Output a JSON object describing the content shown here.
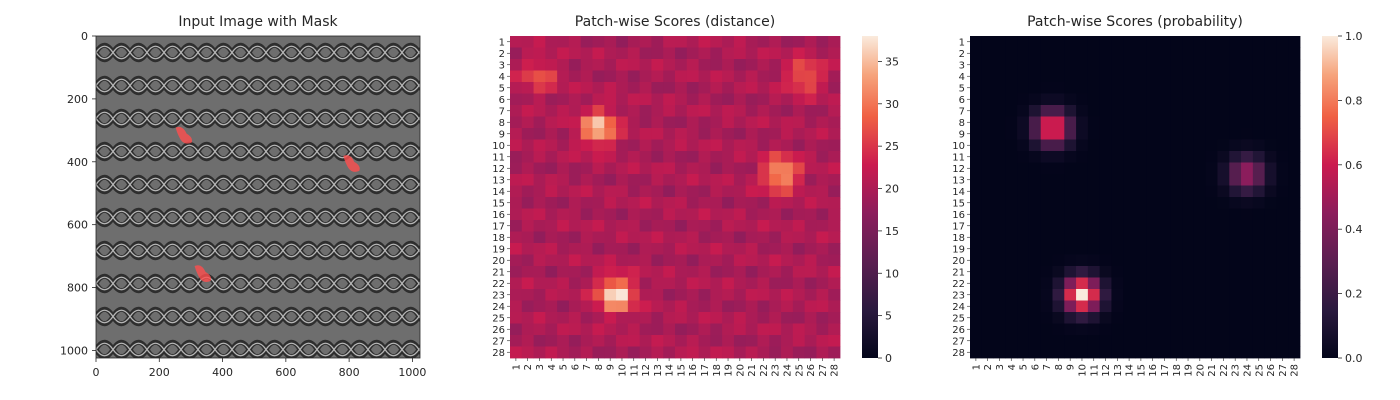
{
  "chart_data": [
    {
      "type": "image",
      "title": "Input Image with Mask",
      "xticks": [
        0,
        200,
        400,
        600,
        800,
        1000
      ],
      "yticks": [
        0,
        200,
        400,
        600,
        800,
        1000
      ],
      "xlim": [
        0,
        1024
      ],
      "ylim": [
        1024,
        0
      ],
      "mask_regions": [
        {
          "x": 280,
          "y": 320
        },
        {
          "x": 810,
          "y": 410
        },
        {
          "x": 340,
          "y": 760
        }
      ],
      "mask_color": "#ff4d4d"
    },
    {
      "type": "heatmap",
      "title": "Patch-wise Scores (distance)",
      "rows": 28,
      "cols": 28,
      "row_labels": [
        "1",
        "2",
        "3",
        "4",
        "5",
        "6",
        "7",
        "8",
        "9",
        "10",
        "11",
        "12",
        "13",
        "14",
        "15",
        "16",
        "17",
        "18",
        "19",
        "20",
        "21",
        "22",
        "23",
        "24",
        "25",
        "26",
        "27",
        "28"
      ],
      "col_labels": [
        "1",
        "2",
        "3",
        "4",
        "5",
        "6",
        "7",
        "8",
        "9",
        "10",
        "11",
        "12",
        "13",
        "14",
        "15",
        "16",
        "17",
        "18",
        "19",
        "20",
        "21",
        "22",
        "23",
        "24",
        "25",
        "26",
        "27",
        "28"
      ],
      "base_value": 20,
      "hotspots": [
        {
          "row": 8.5,
          "col": 8,
          "peak": 36
        },
        {
          "row": 12.5,
          "col": 23.5,
          "peak": 34
        },
        {
          "row": 23,
          "col": 9.5,
          "peak": 38
        },
        {
          "row": 4,
          "col": 25.5,
          "peak": 29
        },
        {
          "row": 4,
          "col": 3,
          "peak": 27
        }
      ],
      "colorbar": {
        "min": 0,
        "max": 38,
        "ticks": [
          0,
          5,
          10,
          15,
          20,
          25,
          30,
          35
        ]
      },
      "colormap": "rocket"
    },
    {
      "type": "heatmap",
      "title": "Patch-wise Scores (probability)",
      "rows": 28,
      "cols": 28,
      "row_labels": [
        "1",
        "2",
        "3",
        "4",
        "5",
        "6",
        "7",
        "8",
        "9",
        "10",
        "11",
        "12",
        "13",
        "14",
        "15",
        "16",
        "17",
        "18",
        "19",
        "20",
        "21",
        "22",
        "23",
        "24",
        "25",
        "26",
        "27",
        "28"
      ],
      "col_labels": [
        "1",
        "2",
        "3",
        "4",
        "5",
        "6",
        "7",
        "8",
        "9",
        "10",
        "11",
        "12",
        "13",
        "14",
        "15",
        "16",
        "17",
        "18",
        "19",
        "20",
        "21",
        "22",
        "23",
        "24",
        "25",
        "26",
        "27",
        "28"
      ],
      "base_value": 0.0,
      "hotspots": [
        {
          "row": 8.5,
          "col": 7.5,
          "peak": 0.75
        },
        {
          "row": 12.5,
          "col": 24,
          "peak": 0.5
        },
        {
          "row": 23,
          "col": 10,
          "peak": 1.0
        }
      ],
      "colorbar": {
        "min": 0.0,
        "max": 1.0,
        "ticks": [
          "0.0",
          "0.2",
          "0.4",
          "0.6",
          "0.8",
          "1.0"
        ]
      },
      "colormap": "rocket"
    }
  ]
}
